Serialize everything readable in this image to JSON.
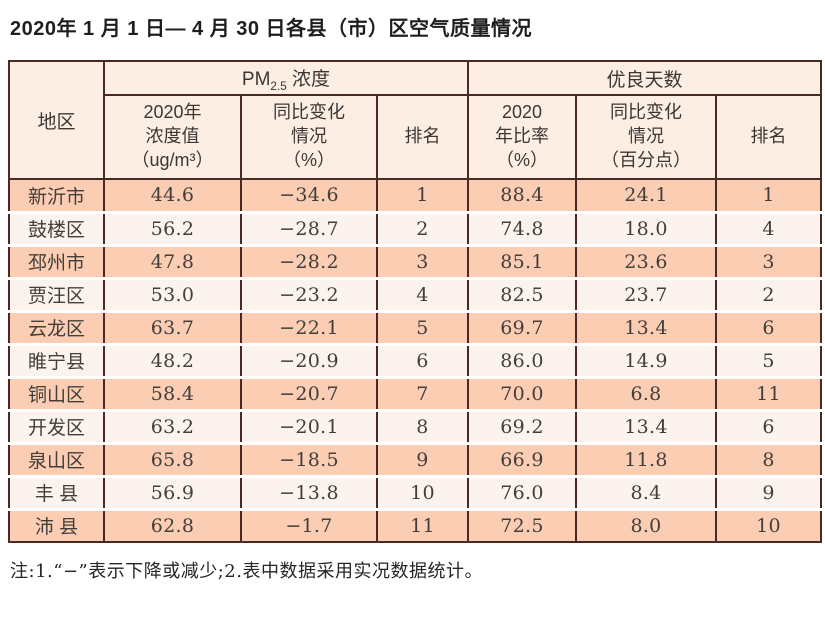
{
  "title": "2020年 1 月 1 日— 4 月 30 日各县（市）区空气质量情况",
  "note": "注:1.“−”表示下降或减少;2.表中数据采用实况数据统计。",
  "colors": {
    "border": "#4a2823",
    "row_odd": "#fbcdb3",
    "row_even": "#fdf3ee",
    "header_bg": "#fceee2",
    "text": "#433e3b"
  },
  "table": {
    "region_header": "地区",
    "pm_group": {
      "prefix": "PM",
      "sub": "2.5",
      "suffix": " 浓度"
    },
    "good_days_header": "优良天数",
    "subheaders": {
      "conc": "2020年\n浓度值\n（ug/m³）",
      "conc_change": "同比变化\n情况\n（%）",
      "rank_pm": "排名",
      "ratio": "2020\n年比率\n（%）",
      "ratio_change": "同比变化\n情况\n（百分点）",
      "rank_days": "排名"
    },
    "rows": [
      {
        "region": "新沂市",
        "conc": "44.6",
        "conc_change": "−34.6",
        "rank_pm": "1",
        "ratio": "88.4",
        "ratio_change": "24.1",
        "rank_days": "1"
      },
      {
        "region": "鼓楼区",
        "conc": "56.2",
        "conc_change": "−28.7",
        "rank_pm": "2",
        "ratio": "74.8",
        "ratio_change": "18.0",
        "rank_days": "4"
      },
      {
        "region": "邳州市",
        "conc": "47.8",
        "conc_change": "−28.2",
        "rank_pm": "3",
        "ratio": "85.1",
        "ratio_change": "23.6",
        "rank_days": "3"
      },
      {
        "region": "贾汪区",
        "conc": "53.0",
        "conc_change": "−23.2",
        "rank_pm": "4",
        "ratio": "82.5",
        "ratio_change": "23.7",
        "rank_days": "2"
      },
      {
        "region": "云龙区",
        "conc": "63.7",
        "conc_change": "−22.1",
        "rank_pm": "5",
        "ratio": "69.7",
        "ratio_change": "13.4",
        "rank_days": "6"
      },
      {
        "region": "睢宁县",
        "conc": "48.2",
        "conc_change": "−20.9",
        "rank_pm": "6",
        "ratio": "86.0",
        "ratio_change": "14.9",
        "rank_days": "5"
      },
      {
        "region": "铜山区",
        "conc": "58.4",
        "conc_change": "−20.7",
        "rank_pm": "7",
        "ratio": "70.0",
        "ratio_change": "6.8",
        "rank_days": "11"
      },
      {
        "region": "开发区",
        "conc": "63.2",
        "conc_change": "−20.1",
        "rank_pm": "8",
        "ratio": "69.2",
        "ratio_change": "13.4",
        "rank_days": "6"
      },
      {
        "region": "泉山区",
        "conc": "65.8",
        "conc_change": "−18.5",
        "rank_pm": "9",
        "ratio": "66.9",
        "ratio_change": "11.8",
        "rank_days": "8"
      },
      {
        "region": "丰 县",
        "conc": "56.9",
        "conc_change": "−13.8",
        "rank_pm": "10",
        "ratio": "76.0",
        "ratio_change": "8.4",
        "rank_days": "9"
      },
      {
        "region": "沛 县",
        "conc": "62.8",
        "conc_change": "−1.7",
        "rank_pm": "11",
        "ratio": "72.5",
        "ratio_change": "8.0",
        "rank_days": "10"
      }
    ]
  }
}
